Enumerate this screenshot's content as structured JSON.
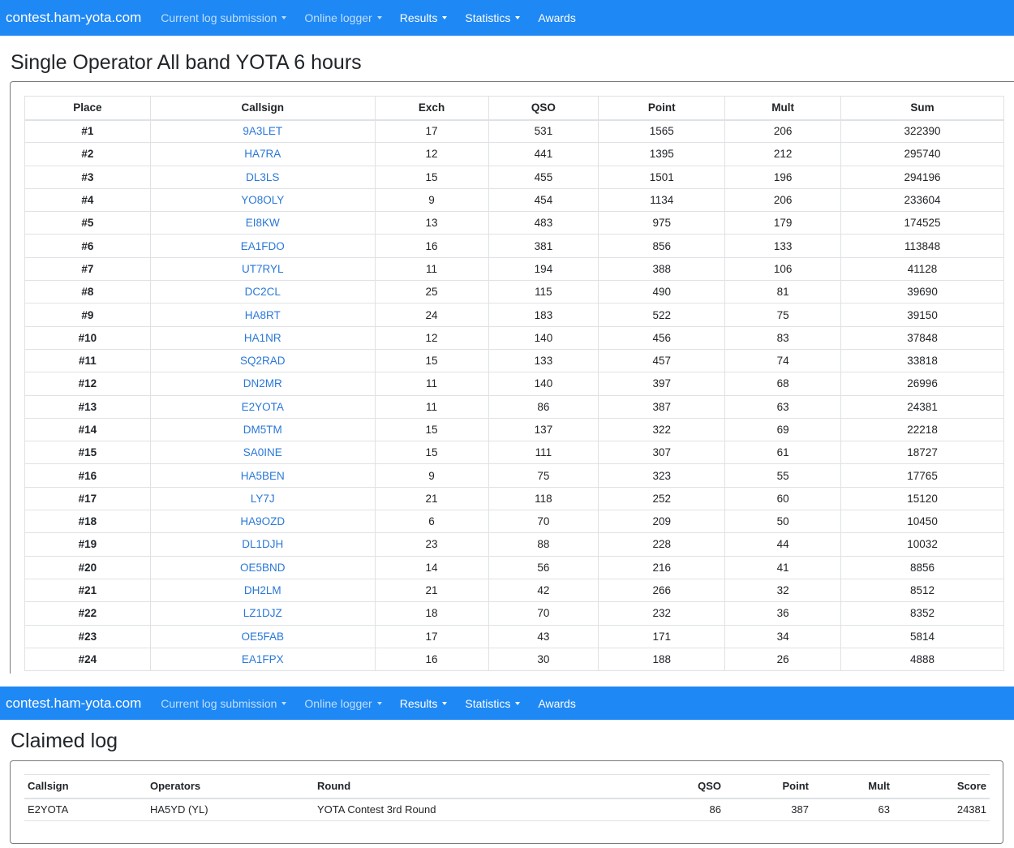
{
  "nav": {
    "brand": "contest.ham-yota.com",
    "items": [
      {
        "label": "Current log submission",
        "dropdown": true
      },
      {
        "label": "Online logger",
        "dropdown": true
      },
      {
        "label": "Results",
        "dropdown": true
      },
      {
        "label": "Statistics",
        "dropdown": true
      },
      {
        "label": "Awards",
        "dropdown": false
      }
    ]
  },
  "results": {
    "title": "Single Operator All band YOTA 6 hours",
    "columns": [
      "Place",
      "Callsign",
      "Exch",
      "QSO",
      "Point",
      "Mult",
      "Sum"
    ],
    "rows": [
      [
        "#1",
        "9A3LET",
        "17",
        "531",
        "1565",
        "206",
        "322390"
      ],
      [
        "#2",
        "HA7RA",
        "12",
        "441",
        "1395",
        "212",
        "295740"
      ],
      [
        "#3",
        "DL3LS",
        "15",
        "455",
        "1501",
        "196",
        "294196"
      ],
      [
        "#4",
        "YO8OLY",
        "9",
        "454",
        "1134",
        "206",
        "233604"
      ],
      [
        "#5",
        "EI8KW",
        "13",
        "483",
        "975",
        "179",
        "174525"
      ],
      [
        "#6",
        "EA1FDO",
        "16",
        "381",
        "856",
        "133",
        "113848"
      ],
      [
        "#7",
        "UT7RYL",
        "11",
        "194",
        "388",
        "106",
        "41128"
      ],
      [
        "#8",
        "DC2CL",
        "25",
        "115",
        "490",
        "81",
        "39690"
      ],
      [
        "#9",
        "HA8RT",
        "24",
        "183",
        "522",
        "75",
        "39150"
      ],
      [
        "#10",
        "HA1NR",
        "12",
        "140",
        "456",
        "83",
        "37848"
      ],
      [
        "#11",
        "SQ2RAD",
        "15",
        "133",
        "457",
        "74",
        "33818"
      ],
      [
        "#12",
        "DN2MR",
        "11",
        "140",
        "397",
        "68",
        "26996"
      ],
      [
        "#13",
        "E2YOTA",
        "11",
        "86",
        "387",
        "63",
        "24381"
      ],
      [
        "#14",
        "DM5TM",
        "15",
        "137",
        "322",
        "69",
        "22218"
      ],
      [
        "#15",
        "SA0INE",
        "15",
        "111",
        "307",
        "61",
        "18727"
      ],
      [
        "#16",
        "HA5BEN",
        "9",
        "75",
        "323",
        "55",
        "17765"
      ],
      [
        "#17",
        "LY7J",
        "21",
        "118",
        "252",
        "60",
        "15120"
      ],
      [
        "#18",
        "HA9OZD",
        "6",
        "70",
        "209",
        "50",
        "10450"
      ],
      [
        "#19",
        "DL1DJH",
        "23",
        "88",
        "228",
        "44",
        "10032"
      ],
      [
        "#20",
        "OE5BND",
        "14",
        "56",
        "216",
        "41",
        "8856"
      ],
      [
        "#21",
        "DH2LM",
        "21",
        "42",
        "266",
        "32",
        "8512"
      ],
      [
        "#22",
        "LZ1DJZ",
        "18",
        "70",
        "232",
        "36",
        "8352"
      ],
      [
        "#23",
        "OE5FAB",
        "17",
        "43",
        "171",
        "34",
        "5814"
      ],
      [
        "#24",
        "EA1FPX",
        "16",
        "30",
        "188",
        "26",
        "4888"
      ]
    ]
  },
  "claimed": {
    "title": "Claimed log",
    "columns": [
      "Callsign",
      "Operators",
      "Round",
      "QSO",
      "Point",
      "Mult",
      "Score"
    ],
    "row": [
      "E2YOTA",
      "HA5YD (YL)",
      "YOTA Contest 3rd Round",
      "86",
      "387",
      "63",
      "24381"
    ]
  },
  "colors": {
    "navbar": "#1e88f5",
    "link": "#2a78d8"
  }
}
